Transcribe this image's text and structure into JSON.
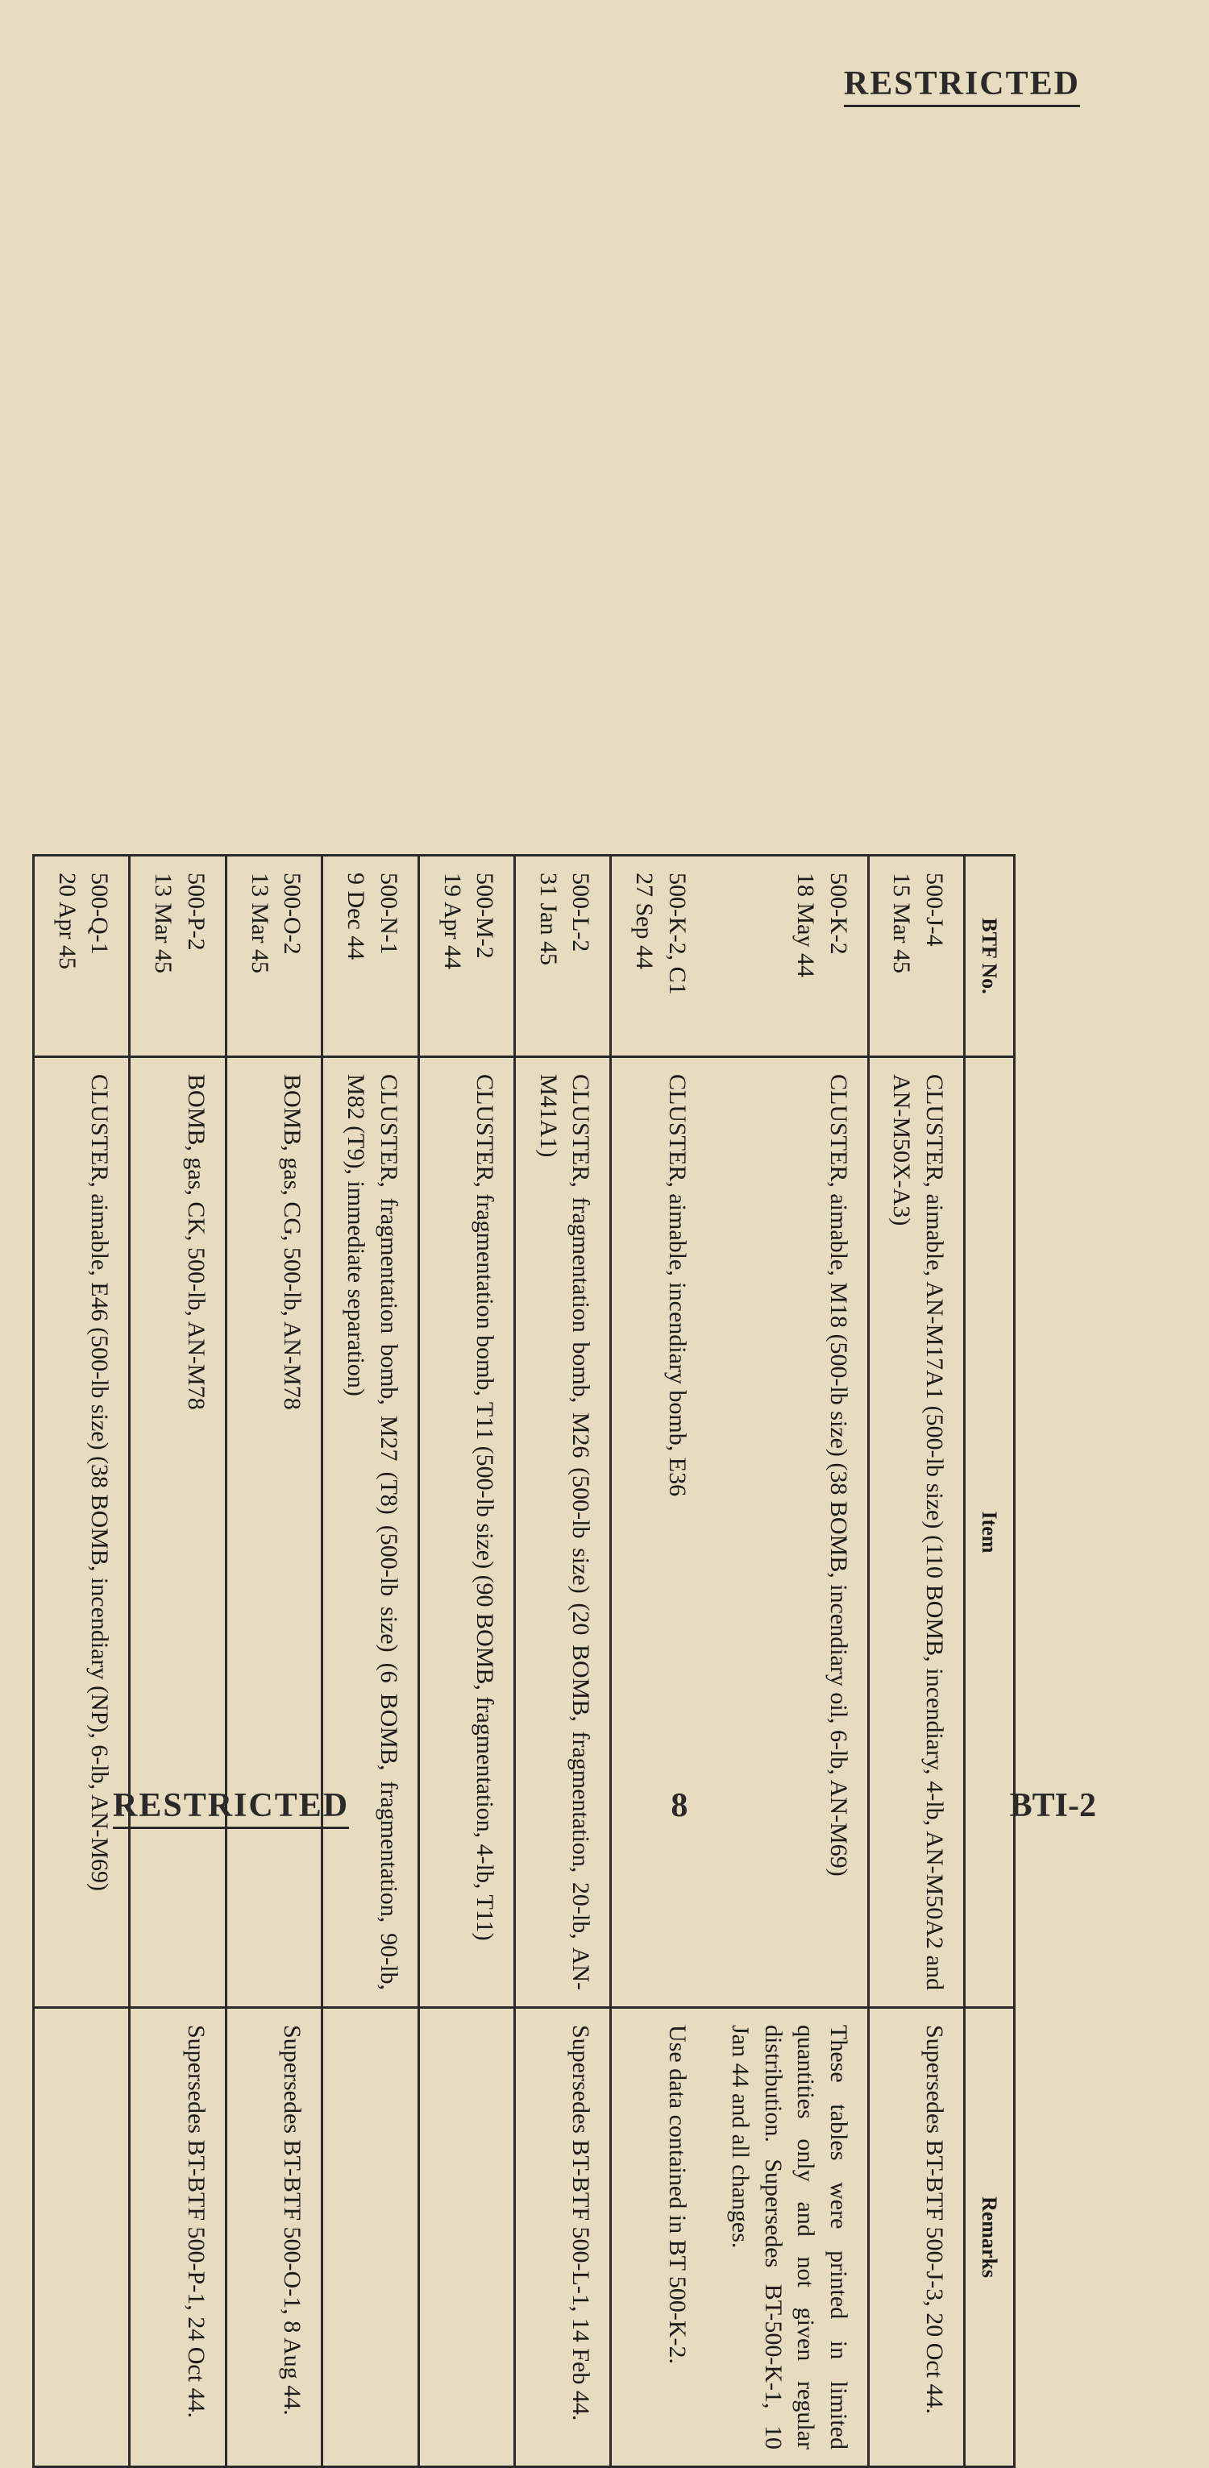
{
  "pageHeader": {
    "classificationTop": "RESTRICTED"
  },
  "pageFooter": {
    "classificationBottom": "RESTRICTED",
    "pageNumber": "8",
    "docCode": "BTI-2"
  },
  "table": {
    "headers": {
      "btfNo": "BTF No.",
      "item": "Item",
      "remarks": "Remarks"
    },
    "rows": [
      {
        "btfNo": "500-J-4\n15 Mar 45",
        "item": "CLUSTER, aimable, AN-M17A1 (500-lb size) (110 BOMB, incendiary, 4-lb, AN-M50A2 and AN-M50X-A3)",
        "remarks": "Supersedes BT-BTF 500-J-3, 20 Oct 44."
      },
      {
        "btfNo": "500-K-2\n18 May 44",
        "item": "CLUSTER, aimable, M18 (500-lb size) (38 BOMB, incendiary oil, 6-lb, AN-M69)",
        "remarks": "These tables were printed in limited quantities only and not given regular distribution. Supersedes BT-500-K-1, 10 Jan 44 and all changes.",
        "groupedBelow": true
      },
      {
        "btfNo": "500-K-2, C1\n27 Sep 44",
        "item": "CLUSTER, aimable, incendiary bomb, E36",
        "remarks": "Use data contained in BT 500-K-2.",
        "groupedAbove": true
      },
      {
        "btfNo": "500-L-2\n31 Jan 45",
        "item": "CLUSTER, fragmentation bomb, M26 (500-lb size) (20 BOMB, fragmentation, 20-lb, AN-M41A1)",
        "remarks": "Supersedes BT-BTF 500-L-1, 14 Feb 44."
      },
      {
        "btfNo": "500-M-2\n19 Apr 44",
        "item": "CLUSTER, fragmentation bomb, T11 (500-lb size) (90 BOMB, fragmentation, 4-lb, T11)",
        "remarks": ""
      },
      {
        "btfNo": "500-N-1\n9 Dec 44",
        "item": "CLUSTER, fragmentation bomb, M27 (T8) (500-lb size) (6 BOMB, fragmentation, 90-lb, M82 (T9), immediate separation)",
        "remarks": ""
      },
      {
        "btfNo": "500-O-2\n13 Mar 45",
        "item": "BOMB, gas, CG, 500-lb, AN-M78",
        "remarks": "Supersedes BT-BTF 500-O-1, 8 Aug 44."
      },
      {
        "btfNo": "500-P-2\n13 Mar 45",
        "item": "BOMB, gas, CK, 500-lb, AN-M78",
        "remarks": "Supersedes BT-BTF 500-P-1, 24 Oct 44."
      },
      {
        "btfNo": "500-Q-1\n20 Apr 45",
        "item": "CLUSTER, aimable, E46 (500-lb size) (38 BOMB, incendiary (NP), 6-lb, AN-M69)",
        "remarks": ""
      }
    ]
  }
}
